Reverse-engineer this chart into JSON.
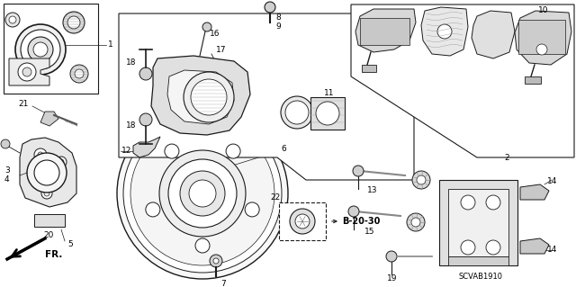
{
  "bg_color": "#ffffff",
  "line_color": "#1a1a1a",
  "fig_width": 6.4,
  "fig_height": 3.19,
  "dpi": 100,
  "watermark": "SCVAB1910",
  "ref_label": "B-20-30",
  "direction_label": "FR."
}
